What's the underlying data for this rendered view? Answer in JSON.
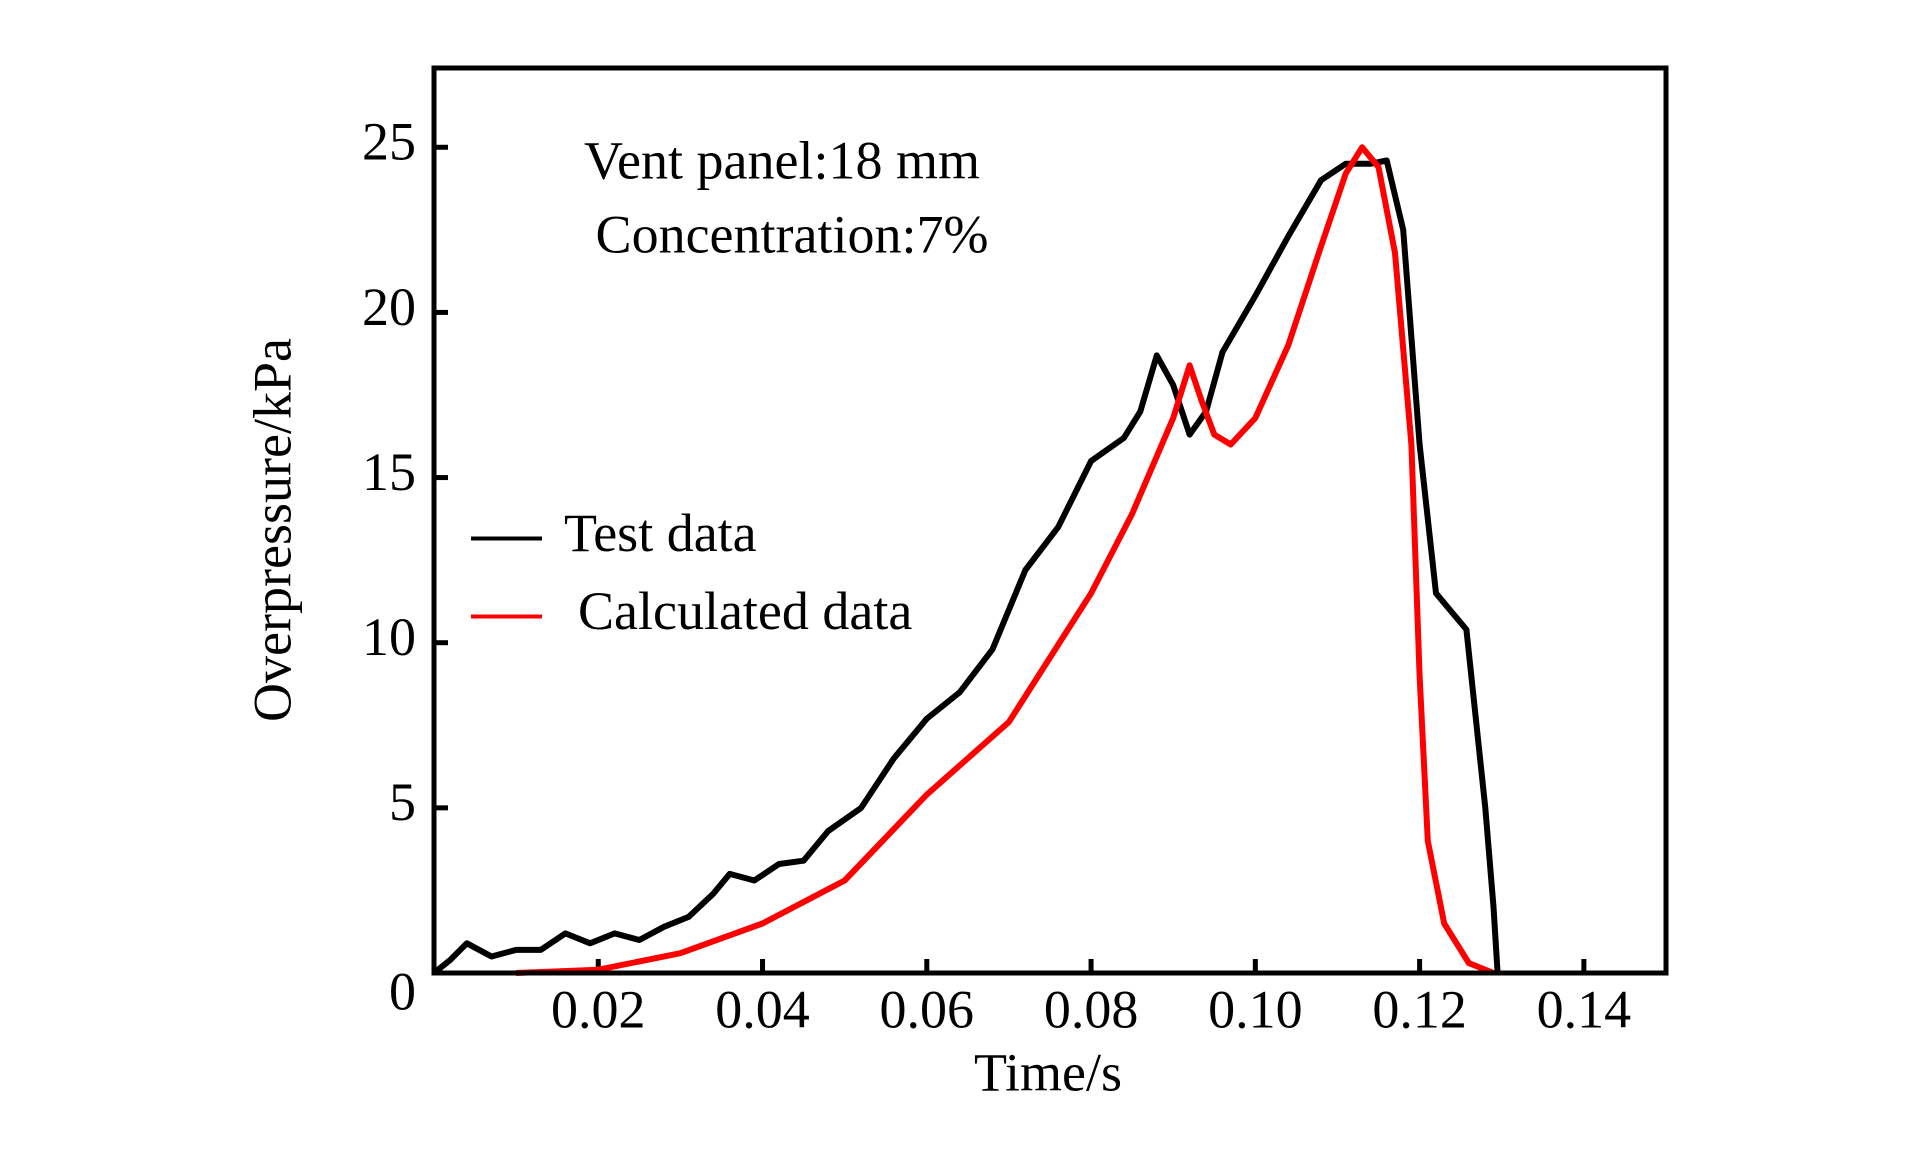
{
  "chart_data": {
    "type": "line",
    "xlabel": "Time/s",
    "ylabel": "Overpressure/kPa",
    "annotations": [
      "Vent panel:18 mm",
      "Concentration:7%"
    ],
    "xlim": [
      0,
      0.15
    ],
    "ylim": [
      0,
      27.4
    ],
    "xticks": [
      0.02,
      0.04,
      0.06,
      0.08,
      {
        "value": 0.1,
        "label": "0.10"
      },
      0.12,
      0.14
    ],
    "yticks": [
      0,
      5,
      10,
      15,
      20,
      25
    ],
    "legend": "center left",
    "series": [
      {
        "name": "Test data",
        "color": "#000000",
        "x": [
          0,
          0.002,
          0.004,
          0.007,
          0.01,
          0.013,
          0.016,
          0.019,
          0.022,
          0.025,
          0.028,
          0.031,
          0.034,
          0.036,
          0.039,
          0.042,
          0.045,
          0.048,
          0.052,
          0.056,
          0.06,
          0.064,
          0.068,
          0.072,
          0.076,
          0.08,
          0.084,
          0.086,
          0.088,
          0.09,
          0.092,
          0.094,
          0.096,
          0.1,
          0.104,
          0.108,
          0.111,
          0.114,
          0.116,
          0.118,
          0.12,
          0.122,
          0.124,
          0.1257,
          0.128,
          0.129,
          0.1295
        ],
        "values": [
          0,
          0.4,
          0.9,
          0.5,
          0.7,
          0.7,
          1.2,
          0.9,
          1.2,
          1.0,
          1.4,
          1.7,
          2.4,
          3.0,
          2.8,
          3.3,
          3.4,
          4.3,
          5.0,
          6.5,
          7.7,
          8.5,
          9.8,
          12.2,
          13.5,
          15.5,
          16.2,
          17.0,
          18.7,
          17.8,
          16.3,
          17.0,
          18.8,
          20.5,
          22.3,
          24.0,
          24.5,
          24.5,
          24.6,
          22.5,
          16.0,
          11.5,
          10.9,
          10.4,
          5.0,
          2.0,
          0
        ]
      },
      {
        "name": "Calculated data",
        "color": "#ff0000",
        "x": [
          0.01,
          0.02,
          0.03,
          0.04,
          0.05,
          0.06,
          0.07,
          0.08,
          0.085,
          0.09,
          0.092,
          0.0935,
          0.095,
          0.097,
          0.1,
          0.104,
          0.108,
          0.111,
          0.113,
          0.115,
          0.117,
          0.119,
          0.12,
          0.121,
          0.123,
          0.126,
          0.129
        ],
        "values": [
          0,
          0.1,
          0.6,
          1.5,
          2.8,
          5.4,
          7.6,
          11.5,
          13.9,
          16.8,
          18.4,
          17.3,
          16.3,
          16.0,
          16.8,
          19.0,
          22.0,
          24.2,
          25.0,
          24.4,
          21.8,
          16.0,
          9.0,
          4.0,
          1.5,
          0.3,
          0
        ]
      }
    ]
  }
}
